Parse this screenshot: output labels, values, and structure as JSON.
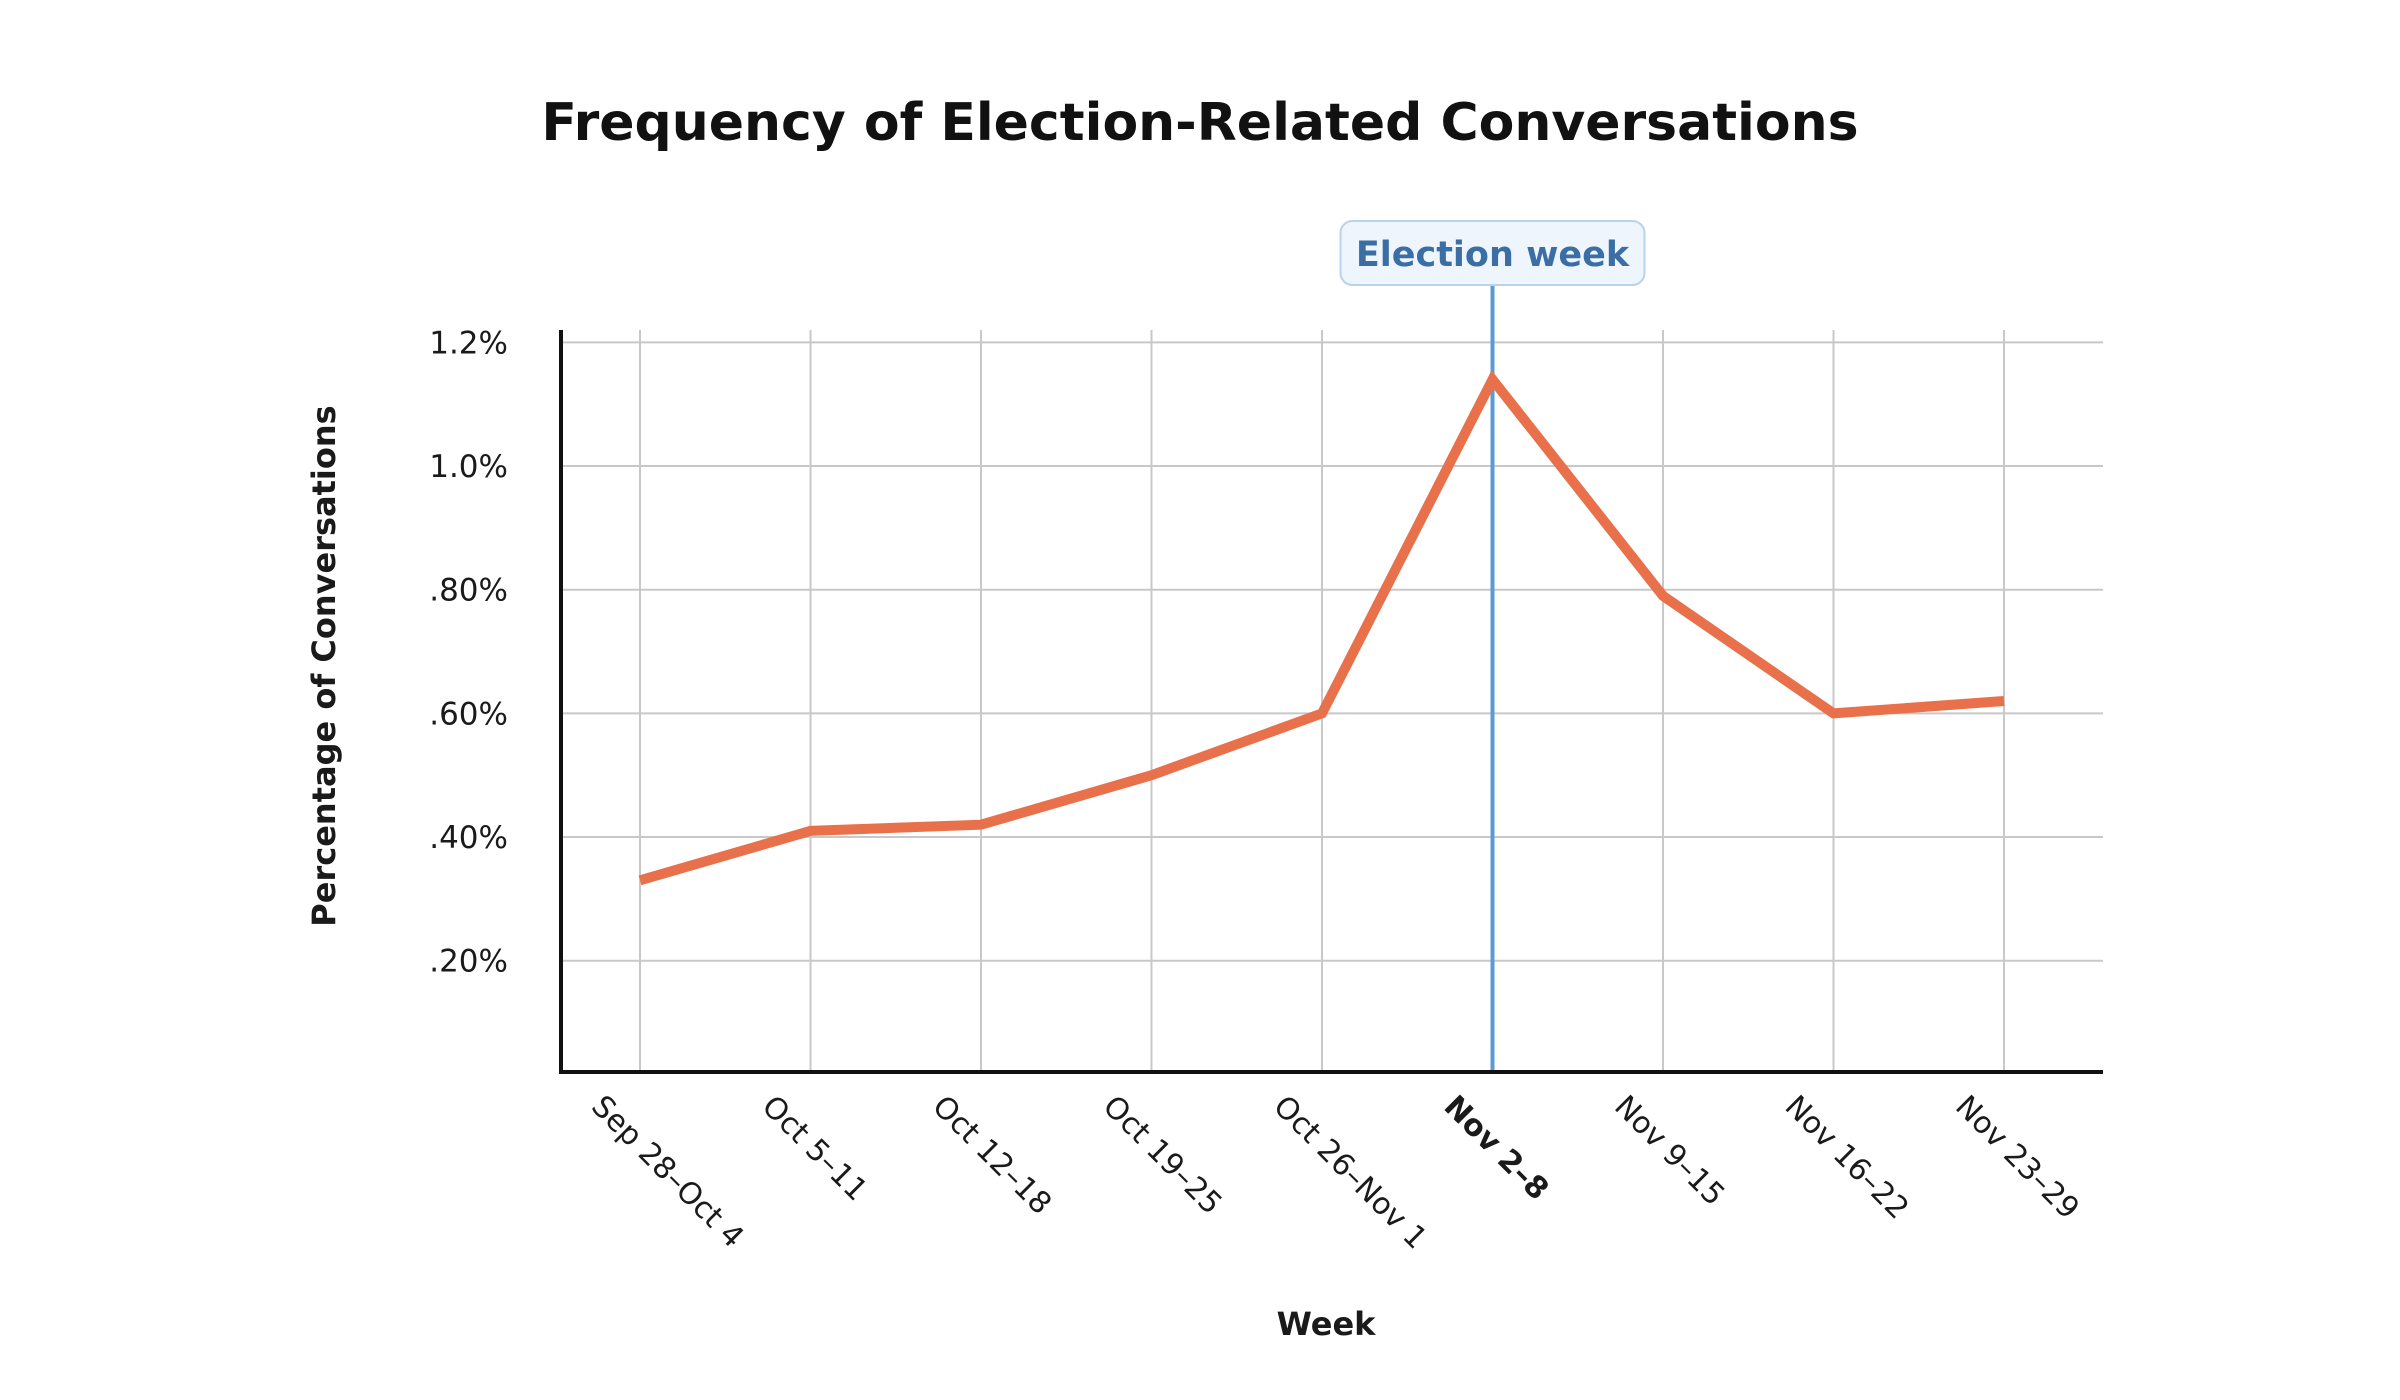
{
  "chart_data": {
    "type": "line",
    "title": "Frequency of Election-Related Conversations",
    "xlabel": "Week",
    "ylabel": "Percentage of Conversations",
    "categories": [
      "Sep 28–Oct 4",
      "Oct 5–11",
      "Oct 12–18",
      "Oct 19–25",
      "Oct 26–Nov 1",
      "Nov 2–8",
      "Nov 9–15",
      "Nov 16–22",
      "Nov 23–29"
    ],
    "series": [
      {
        "values": [
          0.33,
          0.41,
          0.42,
          0.5,
          0.6,
          1.14,
          0.79,
          0.6,
          0.62
        ],
        "color": "#E8704A"
      }
    ],
    "yticks": [
      {
        "value": 0.2,
        "label": ".20%"
      },
      {
        "value": 0.4,
        "label": ".40%"
      },
      {
        "value": 0.6,
        "label": ".60%"
      },
      {
        "value": 0.8,
        "label": ".80%"
      },
      {
        "value": 1.0,
        "label": "1.0%"
      },
      {
        "value": 1.2,
        "label": "1.2%"
      }
    ],
    "ylim": [
      0.02,
      1.22
    ],
    "grid": true,
    "highlight_category": "Nov 2–8",
    "annotation": {
      "text": "Election week",
      "category": "Nov 2–8",
      "line_color": "#5B9BD5",
      "text_color": "#3A6EA5",
      "box_fill": "#EEF5FC",
      "box_stroke": "#B9D3EC"
    },
    "colors": {
      "grid": "#C8C8C8",
      "axis": "#111111"
    }
  }
}
